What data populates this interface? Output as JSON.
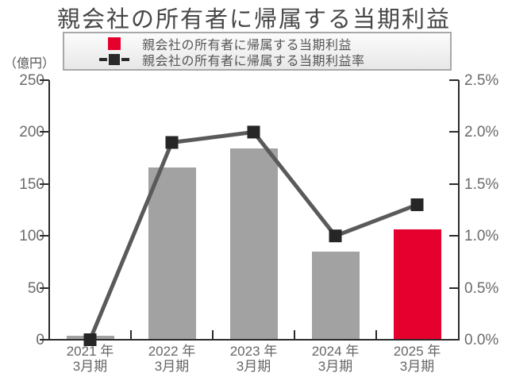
{
  "title": "親会社の所有者に帰属する当期利益",
  "unit_label": "（億円）",
  "legend": {
    "profit": {
      "label": "親会社の所有者に帰属する当期利益",
      "color": "#e6002d"
    },
    "ratio": {
      "label": "親会社の所有者に帰属する当期利益率",
      "color": "#2a2a2a"
    }
  },
  "colors": {
    "bar_gray": "#a2a2a2",
    "bar_red": "#e6002d",
    "line": "#5a5a5a",
    "marker": "#262626",
    "axis": "#2b2b2b"
  },
  "chart_data": {
    "type": "bar",
    "subtype": "combo bar+line, dual axis",
    "title": "親会社の所有者に帰属する当期利益",
    "categories": [
      "2021年3月期",
      "2022年3月期",
      "2023年3月期",
      "2024年3月期",
      "2025年3月期"
    ],
    "x_tick_labels": [
      {
        "top": "2021 年",
        "bottom": "3月期"
      },
      {
        "top": "2022 年",
        "bottom": "3月期"
      },
      {
        "top": "2023 年",
        "bottom": "3月期"
      },
      {
        "top": "2024 年",
        "bottom": "3月期"
      },
      {
        "top": "2025 年",
        "bottom": "3月期"
      }
    ],
    "series": [
      {
        "name": "親会社の所有者に帰属する当期利益",
        "type": "bar",
        "axis": "left",
        "unit": "億円",
        "values": [
          4,
          166,
          184,
          85,
          106
        ],
        "bar_colors": [
          "#a2a2a2",
          "#a2a2a2",
          "#a2a2a2",
          "#a2a2a2",
          "#e6002d"
        ]
      },
      {
        "name": "親会社の所有者に帰属する当期利益率",
        "type": "line",
        "axis": "right",
        "unit": "%",
        "values": [
          0.0,
          1.9,
          2.0,
          1.0,
          1.3
        ]
      }
    ],
    "left_axis": {
      "label": "（億円）",
      "min": 0,
      "max": 250,
      "ticks": [
        "250",
        "200",
        "150",
        "100",
        "50",
        "0"
      ]
    },
    "right_axis": {
      "min": 0,
      "max": 2.5,
      "ticks": [
        "2.5%",
        "2.0%",
        "1.5%",
        "1.0%",
        "0.5%",
        "0.0%"
      ]
    },
    "grid": false,
    "legend_position": "top"
  }
}
